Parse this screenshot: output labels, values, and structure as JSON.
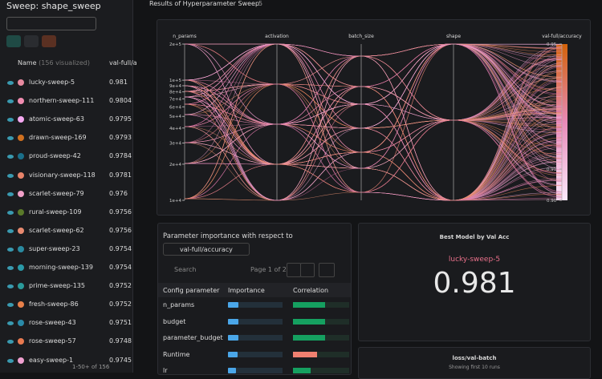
{
  "sidebar": {
    "title": "Sweep: shape_sweep",
    "header_name": "Name",
    "header_count": "(156 visualized)",
    "header_metric": "val-full/a",
    "runs": [
      {
        "name": "lucky-sweep-5",
        "value": "0.981",
        "color": "#e88aa0"
      },
      {
        "name": "northern-sweep-111",
        "value": "0.9804",
        "color": "#f08cb0"
      },
      {
        "name": "atomic-sweep-63",
        "value": "0.9795",
        "color": "#f5a8f0"
      },
      {
        "name": "drawn-sweep-169",
        "value": "0.9793",
        "color": "#d0701f"
      },
      {
        "name": "proud-sweep-42",
        "value": "0.9784",
        "color": "#1a6f8a"
      },
      {
        "name": "visionary-sweep-118",
        "value": "0.9781",
        "color": "#e8846a"
      },
      {
        "name": "scarlet-sweep-79",
        "value": "0.976",
        "color": "#f0a0c8"
      },
      {
        "name": "rural-sweep-109",
        "value": "0.9756",
        "color": "#5a7a2a"
      },
      {
        "name": "scarlet-sweep-62",
        "value": "0.9756",
        "color": "#e88a70"
      },
      {
        "name": "super-sweep-23",
        "value": "0.9754",
        "color": "#2a8aa0"
      },
      {
        "name": "morning-sweep-139",
        "value": "0.9754",
        "color": "#2a9aa8"
      },
      {
        "name": "prime-sweep-135",
        "value": "0.9752",
        "color": "#2a9a9a"
      },
      {
        "name": "fresh-sweep-86",
        "value": "0.9752",
        "color": "#e8804a"
      },
      {
        "name": "rose-sweep-43",
        "value": "0.9751",
        "color": "#2a8aa8"
      },
      {
        "name": "rose-sweep-57",
        "value": "0.9748",
        "color": "#e87a50"
      },
      {
        "name": "easy-sweep-1",
        "value": "0.9745",
        "color": "#f0a0d0"
      }
    ],
    "pagination": "1-50+ of 156"
  },
  "section": {
    "title": "Results of Hyperparameter Sweep",
    "count": "5"
  },
  "parallel": {
    "axes": [
      "n_params",
      "activation",
      "batch_size",
      "shape",
      "val-full/accuracy"
    ],
    "n_params_ticks": [
      {
        "value": 200000,
        "label": "2e+5"
      },
      {
        "value": 100000,
        "label": "1e+5"
      },
      {
        "value": 90000,
        "label": "9e+4"
      },
      {
        "value": 80000,
        "label": "8e+4"
      },
      {
        "value": 70000,
        "label": "7e+4"
      },
      {
        "value": 60000,
        "label": "6e+4"
      },
      {
        "value": 50000,
        "label": "5e+4"
      },
      {
        "value": 40000,
        "label": "4e+4"
      },
      {
        "value": 30000,
        "label": "3e+4"
      },
      {
        "value": 20000,
        "label": "2e+4"
      },
      {
        "value": 10000,
        "label": "1e+4"
      }
    ],
    "n_params_lim": [
      10000,
      200000
    ],
    "n_params_log": true,
    "accuracy_ticks": [
      0.95,
      0.91,
      {
        "value": 0.9,
        "label": "0.90"
      }
    ],
    "accuracy_lim": [
      0.9,
      0.95
    ]
  },
  "importance": {
    "title": "Parameter importance with respect to",
    "metric": "val-full/accuracy",
    "search": "Search",
    "page": "Page 1 of 2",
    "columns": [
      "Config parameter",
      "Importance",
      "Correlation"
    ],
    "rows": [
      {
        "param": "n_params",
        "importance": 0.2,
        "correlation": 0.57
      },
      {
        "param": "budget",
        "importance": 0.2,
        "correlation": 0.57
      },
      {
        "param": "parameter_budget",
        "importance": 0.2,
        "correlation": 0.57
      },
      {
        "param": "Runtime",
        "importance": 0.18,
        "correlation": -0.43
      },
      {
        "param": "lr",
        "importance": 0.15,
        "correlation": 0.31
      }
    ]
  },
  "best": {
    "title": "Best Model by Val Acc",
    "run": "lucky-sweep-5",
    "value": "0.981"
  },
  "loss": {
    "title": "loss/val-batch",
    "subtitle": "Showing first 10 runs"
  }
}
